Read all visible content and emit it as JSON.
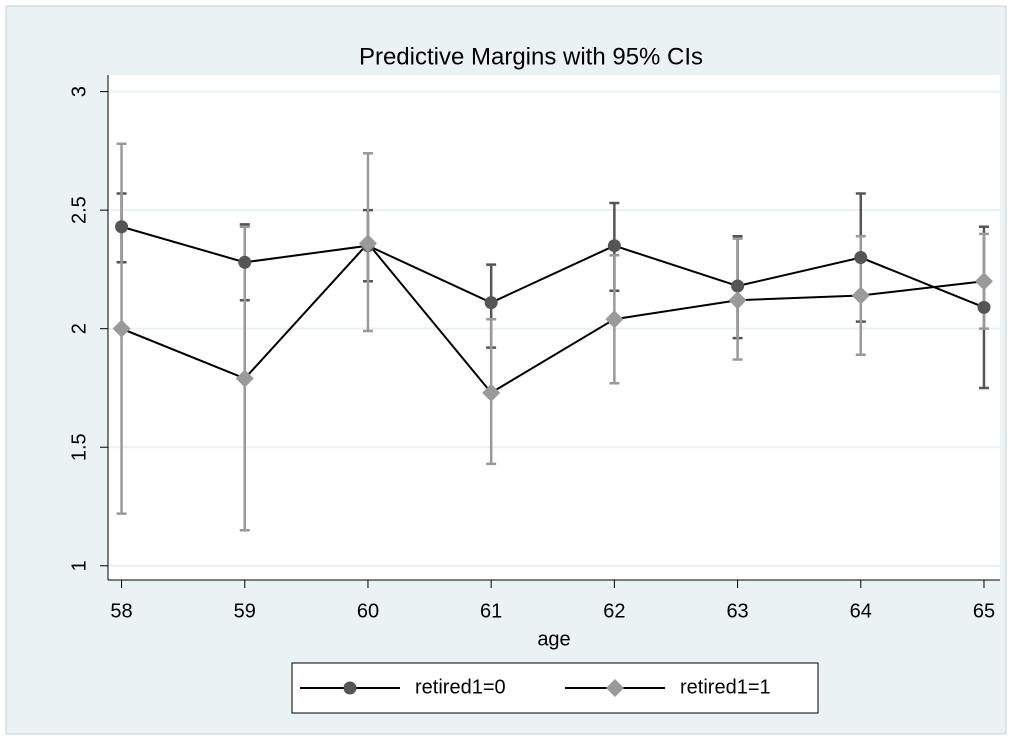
{
  "chart_data": {
    "type": "line",
    "title": "Predictive Margins with 95% CIs",
    "xlabel": "age",
    "x": [
      58,
      59,
      60,
      61,
      62,
      63,
      64,
      65
    ],
    "xlim": [
      57.89,
      65.13
    ],
    "xticks": [
      58,
      59,
      60,
      61,
      62,
      63,
      64,
      65
    ],
    "ylim": [
      0.94,
      3.07
    ],
    "yticks": [
      1,
      1.5,
      2,
      2.5,
      3
    ],
    "grid": true,
    "legend": "bottom",
    "series": [
      {
        "name": "retired1=0",
        "color": "#555555",
        "marker": "circle",
        "values": [
          2.43,
          2.28,
          2.35,
          2.11,
          2.35,
          2.18,
          2.3,
          2.09
        ],
        "lower": [
          2.28,
          2.12,
          2.2,
          1.92,
          2.16,
          1.96,
          2.03,
          1.75
        ],
        "upper": [
          2.57,
          2.44,
          2.5,
          2.27,
          2.53,
          2.39,
          2.57,
          2.43
        ]
      },
      {
        "name": "retired1=1",
        "color": "#9a9a9a",
        "marker": "diamond",
        "values": [
          2.0,
          1.79,
          2.36,
          1.73,
          2.04,
          2.12,
          2.14,
          2.2
        ],
        "lower": [
          1.22,
          1.15,
          1.99,
          1.43,
          1.77,
          1.87,
          1.89,
          2.0
        ],
        "upper": [
          2.78,
          2.43,
          2.74,
          2.04,
          2.31,
          2.38,
          2.39,
          2.4
        ]
      }
    ]
  }
}
